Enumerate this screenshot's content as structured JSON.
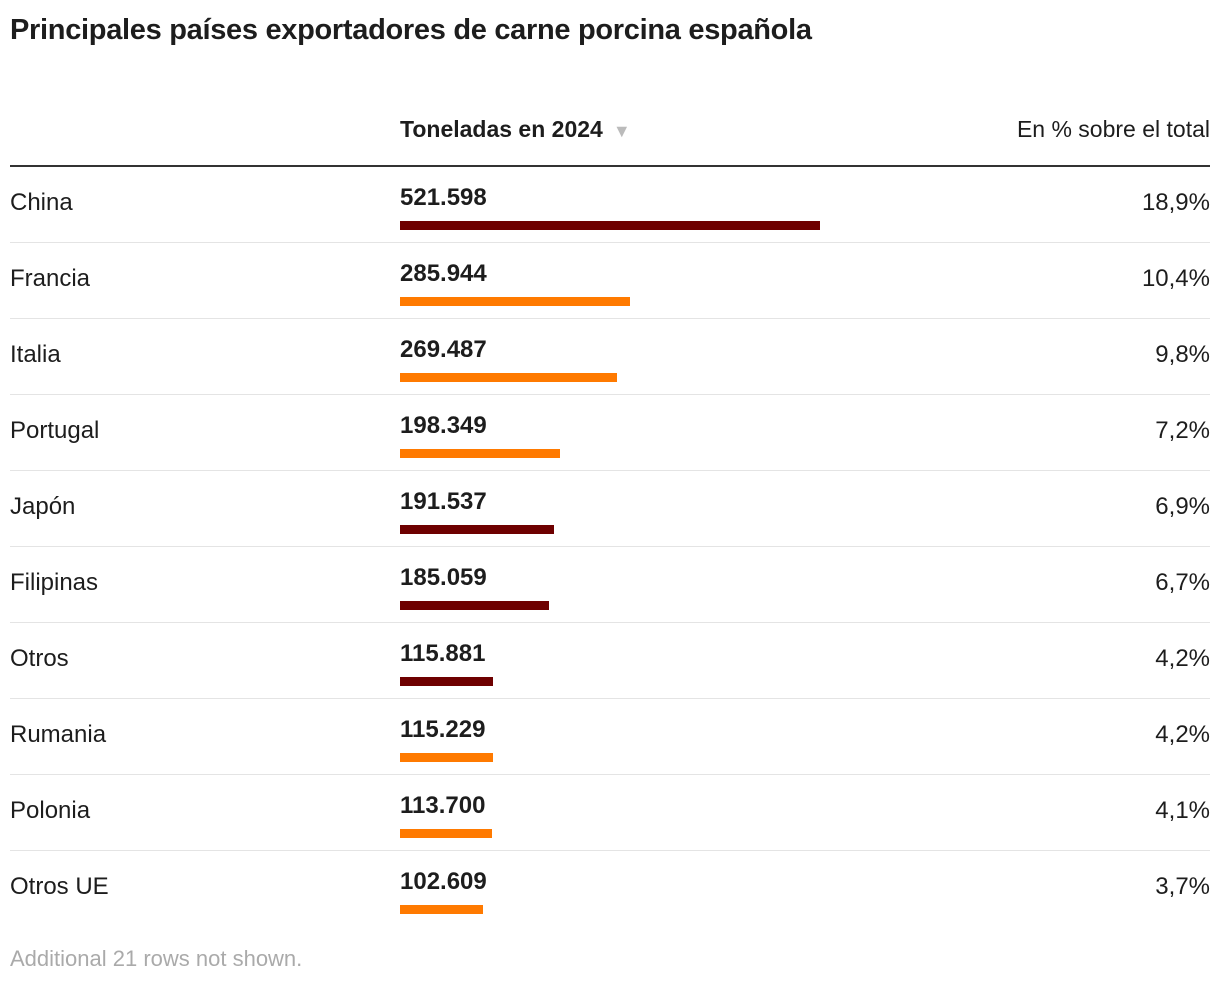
{
  "title": "Principales países exportadores de carne porcina española",
  "columns": {
    "country": "",
    "tonnes": "Toneladas en 2024",
    "sort_icon": "triangle-down-icon",
    "percent": "En % sobre el total"
  },
  "colors": {
    "dark": "#6e0000",
    "orange": "#ff7a00"
  },
  "chart_data": {
    "type": "table",
    "title": "Principales países exportadores de carne porcina española",
    "rows": [
      {
        "country": "China",
        "tonnes": 521598,
        "tonnes_label": "521.598",
        "percent": "18,9%",
        "color": "#6e0000"
      },
      {
        "country": "Francia",
        "tonnes": 285944,
        "tonnes_label": "285.944",
        "percent": "10,4%",
        "color": "#ff7a00"
      },
      {
        "country": "Italia",
        "tonnes": 269487,
        "tonnes_label": "269.487",
        "percent": "9,8%",
        "color": "#ff7a00"
      },
      {
        "country": "Portugal",
        "tonnes": 198349,
        "tonnes_label": "198.349",
        "percent": "7,2%",
        "color": "#ff7a00"
      },
      {
        "country": "Japón",
        "tonnes": 191537,
        "tonnes_label": "191.537",
        "percent": "6,9%",
        "color": "#6e0000"
      },
      {
        "country": "Filipinas",
        "tonnes": 185059,
        "tonnes_label": "185.059",
        "percent": "6,7%",
        "color": "#6e0000"
      },
      {
        "country": "Otros",
        "tonnes": 115881,
        "tonnes_label": "115.881",
        "percent": "4,2%",
        "color": "#6e0000"
      },
      {
        "country": "Rumania",
        "tonnes": 115229,
        "tonnes_label": "115.229",
        "percent": "4,2%",
        "color": "#ff7a00"
      },
      {
        "country": "Polonia",
        "tonnes": 113700,
        "tonnes_label": "113.700",
        "percent": "4,1%",
        "color": "#ff7a00"
      },
      {
        "country": "Otros UE",
        "tonnes": 102609,
        "tonnes_label": "102.609",
        "percent": "3,7%",
        "color": "#ff7a00"
      }
    ]
  },
  "footer_note": "Additional 21 rows not shown."
}
